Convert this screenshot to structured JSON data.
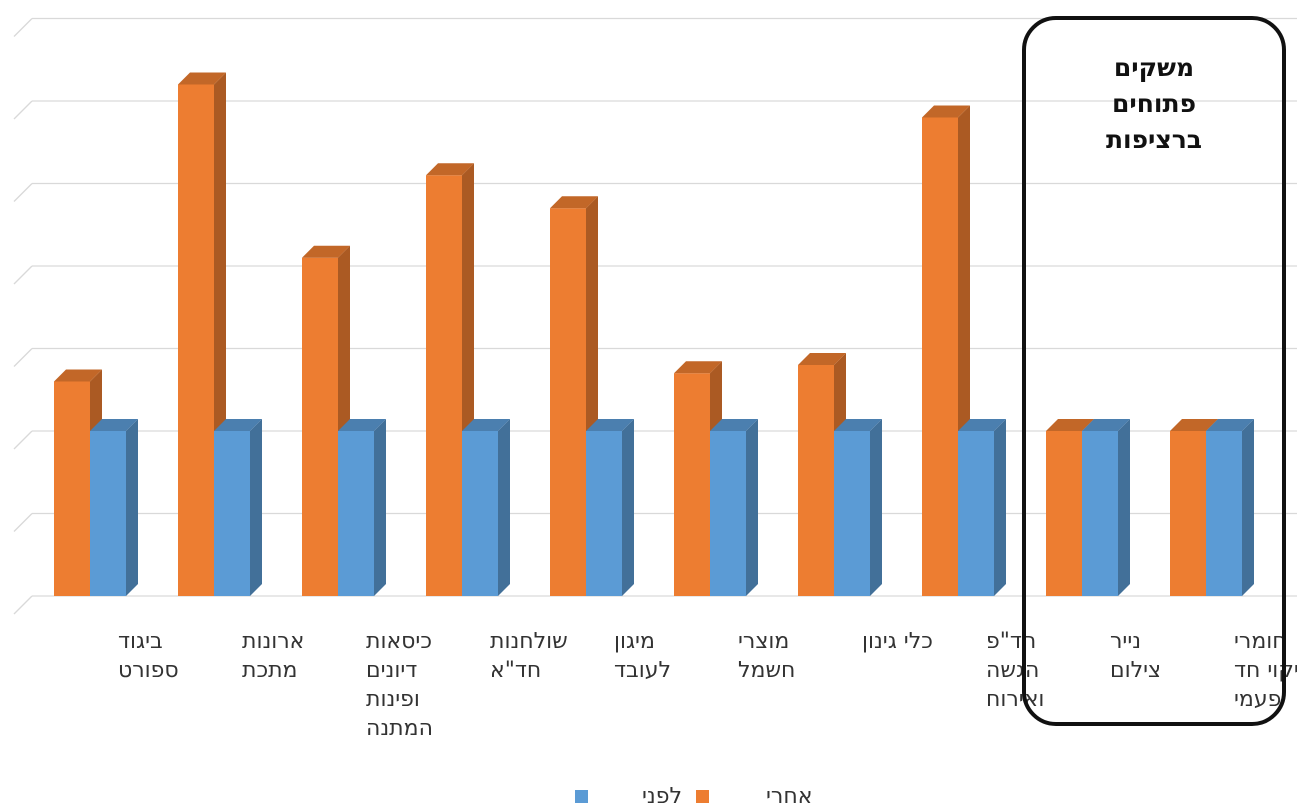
{
  "chart_data": {
    "type": "bar",
    "direction": "rtl",
    "categories": [
      [
        "ביגוד",
        "ספורט"
      ],
      [
        "ארונות",
        "מתכת"
      ],
      [
        "כיסאות",
        "דיונים",
        "ופינות",
        "המתנה"
      ],
      [
        "שולחנות",
        "חד\"א"
      ],
      [
        "מיגון",
        "לעובד"
      ],
      [
        "מוצרי",
        "חשמל"
      ],
      [
        "כלי גינון"
      ],
      [
        "חד\"פ",
        "הגשה",
        "ואירוח"
      ],
      [
        "נייר",
        "צילום"
      ],
      [
        "חומרי",
        "ניקוי חד",
        "פעמי"
      ]
    ],
    "series": [
      {
        "name": "אחרי",
        "color": "#ED7D31",
        "values": [
          2.6,
          6.2,
          4.1,
          5.1,
          4.7,
          2.7,
          2.8,
          5.8,
          2.0,
          2.0
        ]
      },
      {
        "name": "לפני",
        "color": "#5B9BD5",
        "values": [
          2.0,
          2.0,
          2.0,
          2.0,
          2.0,
          2.0,
          2.0,
          2.0,
          2.0,
          2.0
        ]
      }
    ],
    "ylim": [
      0,
      7
    ],
    "grid": true,
    "legend": "bottom",
    "annotation_box": {
      "title_lines": [
        "משקים",
        "פתוחים",
        "ברציפות"
      ],
      "covers_categories": [
        8,
        9
      ]
    }
  }
}
